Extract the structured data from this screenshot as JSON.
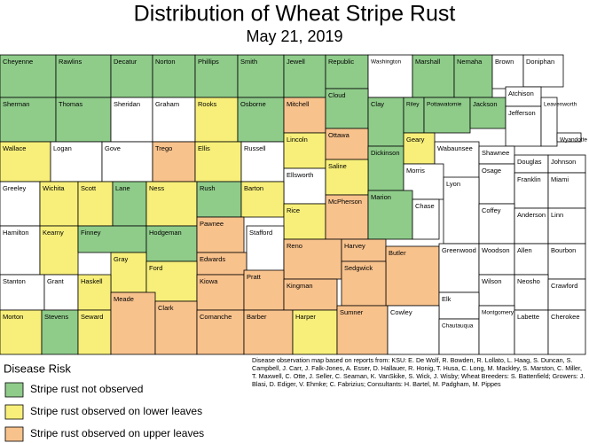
{
  "title": "Distribution of Wheat Stripe Rust",
  "subtitle": "May 21, 2019",
  "counties": [
    {
      "name": "Cheyenne",
      "color": "#8fcc8a"
    },
    {
      "name": "Rawlins",
      "color": "#8fcc8a"
    },
    {
      "name": "Decatur",
      "color": "#8fcc8a"
    },
    {
      "name": "Norton",
      "color": "#8fcc8a"
    },
    {
      "name": "Phillips",
      "color": "#8fcc8a"
    },
    {
      "name": "Smith",
      "color": "#8fcc8a"
    },
    {
      "name": "Jewell",
      "color": "#8fcc8a"
    },
    {
      "name": "Republic",
      "color": "#8fcc8a"
    },
    {
      "name": "Washington",
      "color": "#ffffff"
    },
    {
      "name": "Marshall",
      "color": "#8fcc8a"
    },
    {
      "name": "Nemaha",
      "color": "#8fcc8a"
    },
    {
      "name": "Brown",
      "color": "#ffffff"
    },
    {
      "name": "Doniphan",
      "color": "#ffffff"
    },
    {
      "name": "Sherman",
      "color": "#8fcc8a"
    },
    {
      "name": "Thomas",
      "color": "#8fcc8a"
    },
    {
      "name": "Sheridan",
      "color": "#ffffff"
    },
    {
      "name": "Graham",
      "color": "#ffffff"
    },
    {
      "name": "Rooks",
      "color": "#f7ef7a"
    },
    {
      "name": "Osborne",
      "color": "#8fcc8a"
    },
    {
      "name": "Mitchell",
      "color": "#f8c28d"
    },
    {
      "name": "Cloud",
      "color": "#8fcc8a"
    },
    {
      "name": "Clay",
      "color": "#8fcc8a"
    },
    {
      "name": "Riley",
      "color": "#8fcc8a"
    },
    {
      "name": "Pottawatomie",
      "color": "#8fcc8a"
    },
    {
      "name": "Jackson",
      "color": "#8fcc8a"
    },
    {
      "name": "Atchison",
      "color": "#ffffff"
    },
    {
      "name": "Jefferson",
      "color": "#ffffff"
    },
    {
      "name": "Leavenworth",
      "color": "#ffffff"
    },
    {
      "name": "Wyandotte",
      "color": "#ffffff"
    },
    {
      "name": "Wallace",
      "color": "#f7ef7a"
    },
    {
      "name": "Logan",
      "color": "#ffffff"
    },
    {
      "name": "Gove",
      "color": "#ffffff"
    },
    {
      "name": "Trego",
      "color": "#f8c28d"
    },
    {
      "name": "Ellis",
      "color": "#f7ef7a"
    },
    {
      "name": "Russell",
      "color": "#ffffff"
    },
    {
      "name": "Lincoln",
      "color": "#f7ef7a"
    },
    {
      "name": "Ottawa",
      "color": "#f8c28d"
    },
    {
      "name": "Dickinson",
      "color": "#8fcc8a"
    },
    {
      "name": "Geary",
      "color": "#f7ef7a"
    },
    {
      "name": "Wabaunsee",
      "color": "#ffffff"
    },
    {
      "name": "Shawnee",
      "color": "#ffffff"
    },
    {
      "name": "Douglas",
      "color": "#ffffff"
    },
    {
      "name": "Johnson",
      "color": "#ffffff"
    },
    {
      "name": "Ellsworth",
      "color": "#ffffff"
    },
    {
      "name": "Saline",
      "color": "#f7ef7a"
    },
    {
      "name": "Morris",
      "color": "#ffffff"
    },
    {
      "name": "Osage",
      "color": "#ffffff"
    },
    {
      "name": "Franklin",
      "color": "#ffffff"
    },
    {
      "name": "Miami",
      "color": "#ffffff"
    },
    {
      "name": "Greeley",
      "color": "#ffffff"
    },
    {
      "name": "Wichita",
      "color": "#f7ef7a"
    },
    {
      "name": "Scott",
      "color": "#f7ef7a"
    },
    {
      "name": "Lane",
      "color": "#8fcc8a"
    },
    {
      "name": "Ness",
      "color": "#f7ef7a"
    },
    {
      "name": "Rush",
      "color": "#8fcc8a"
    },
    {
      "name": "Barton",
      "color": "#f7ef7a"
    },
    {
      "name": "Rice",
      "color": "#f7ef7a"
    },
    {
      "name": "McPherson",
      "color": "#f8c28d"
    },
    {
      "name": "Marion",
      "color": "#8fcc8a"
    },
    {
      "name": "Chase",
      "color": "#ffffff"
    },
    {
      "name": "Lyon",
      "color": "#ffffff"
    },
    {
      "name": "Coffey",
      "color": "#ffffff"
    },
    {
      "name": "Anderson",
      "color": "#ffffff"
    },
    {
      "name": "Linn",
      "color": "#ffffff"
    },
    {
      "name": "Hamilton",
      "color": "#ffffff"
    },
    {
      "name": "Kearny",
      "color": "#f7ef7a"
    },
    {
      "name": "Finney",
      "color": "#8fcc8a"
    },
    {
      "name": "Hodgeman",
      "color": "#8fcc8a"
    },
    {
      "name": "Pawnee",
      "color": "#f8c28d"
    },
    {
      "name": "Stafford",
      "color": "#ffffff"
    },
    {
      "name": "Reno",
      "color": "#f8c28d"
    },
    {
      "name": "Harvey",
      "color": "#f8c28d"
    },
    {
      "name": "Butler",
      "color": "#f8c28d"
    },
    {
      "name": "Greenwood",
      "color": "#ffffff"
    },
    {
      "name": "Woodson",
      "color": "#ffffff"
    },
    {
      "name": "Allen",
      "color": "#ffffff"
    },
    {
      "name": "Bourbon",
      "color": "#ffffff"
    },
    {
      "name": "Edwards",
      "color": "#f8c28d"
    },
    {
      "name": "Gray",
      "color": "#f7ef7a"
    },
    {
      "name": "Ford",
      "color": "#f7ef7a"
    },
    {
      "name": "Sedgwick",
      "color": "#f8c28d"
    },
    {
      "name": "Stanton",
      "color": "#ffffff"
    },
    {
      "name": "Grant",
      "color": "#ffffff"
    },
    {
      "name": "Haskell",
      "color": "#f7ef7a"
    },
    {
      "name": "Kiowa",
      "color": "#f8c28d"
    },
    {
      "name": "Pratt",
      "color": "#f8c28d"
    },
    {
      "name": "Kingman",
      "color": "#f8c28d"
    },
    {
      "name": "Wilson",
      "color": "#ffffff"
    },
    {
      "name": "Neosho",
      "color": "#ffffff"
    },
    {
      "name": "Crawford",
      "color": "#ffffff"
    },
    {
      "name": "Elk",
      "color": "#ffffff"
    },
    {
      "name": "Morton",
      "color": "#f7ef7a"
    },
    {
      "name": "Stevens",
      "color": "#8fcc8a"
    },
    {
      "name": "Seward",
      "color": "#f7ef7a"
    },
    {
      "name": "Meade",
      "color": "#f8c28d"
    },
    {
      "name": "Clark",
      "color": "#f8c28d"
    },
    {
      "name": "Comanche",
      "color": "#f8c28d"
    },
    {
      "name": "Barber",
      "color": "#f8c28d"
    },
    {
      "name": "Harper",
      "color": "#f7ef7a"
    },
    {
      "name": "Sumner",
      "color": "#f8c28d"
    },
    {
      "name": "Cowley",
      "color": "#ffffff"
    },
    {
      "name": "Chautauqua",
      "color": "#ffffff"
    },
    {
      "name": "Montgomery",
      "color": "#ffffff"
    },
    {
      "name": "Labette",
      "color": "#ffffff"
    },
    {
      "name": "Cherokee",
      "color": "#ffffff"
    }
  ],
  "legend": {
    "title": "Disease Risk",
    "items": [
      {
        "label": "Stripe rust not observed",
        "color": "#8fcc8a"
      },
      {
        "label": "Stripe rust observed on lower leaves",
        "color": "#f7ef7a"
      },
      {
        "label": "Stripe rust observed on upper leaves",
        "color": "#f8c28d"
      }
    ]
  },
  "credits": "Disease observation map based on reports from: KSU: E. De Wolf, R. Bowden, R. Lollato, L. Haag, S. Duncan, S. Campbell, J. Carr, J. Falk-Jones, A. Esser, D. Hallauer, R. Honig, T. Husa, C. Long, M. Mackley, S. Marston, C. Miller, T. Maxwell, C. Otte, J. Seller, C. Seaman, K. VanSkike, S. Wick, J. Wisby; Wheat Breeders: S. Battenfield; Growers: J. Blasi, D. Ediger, V. Ehmke; C. Fabrizius; Consultants: H. Bartel, M. Padgham, M. Pippes"
}
